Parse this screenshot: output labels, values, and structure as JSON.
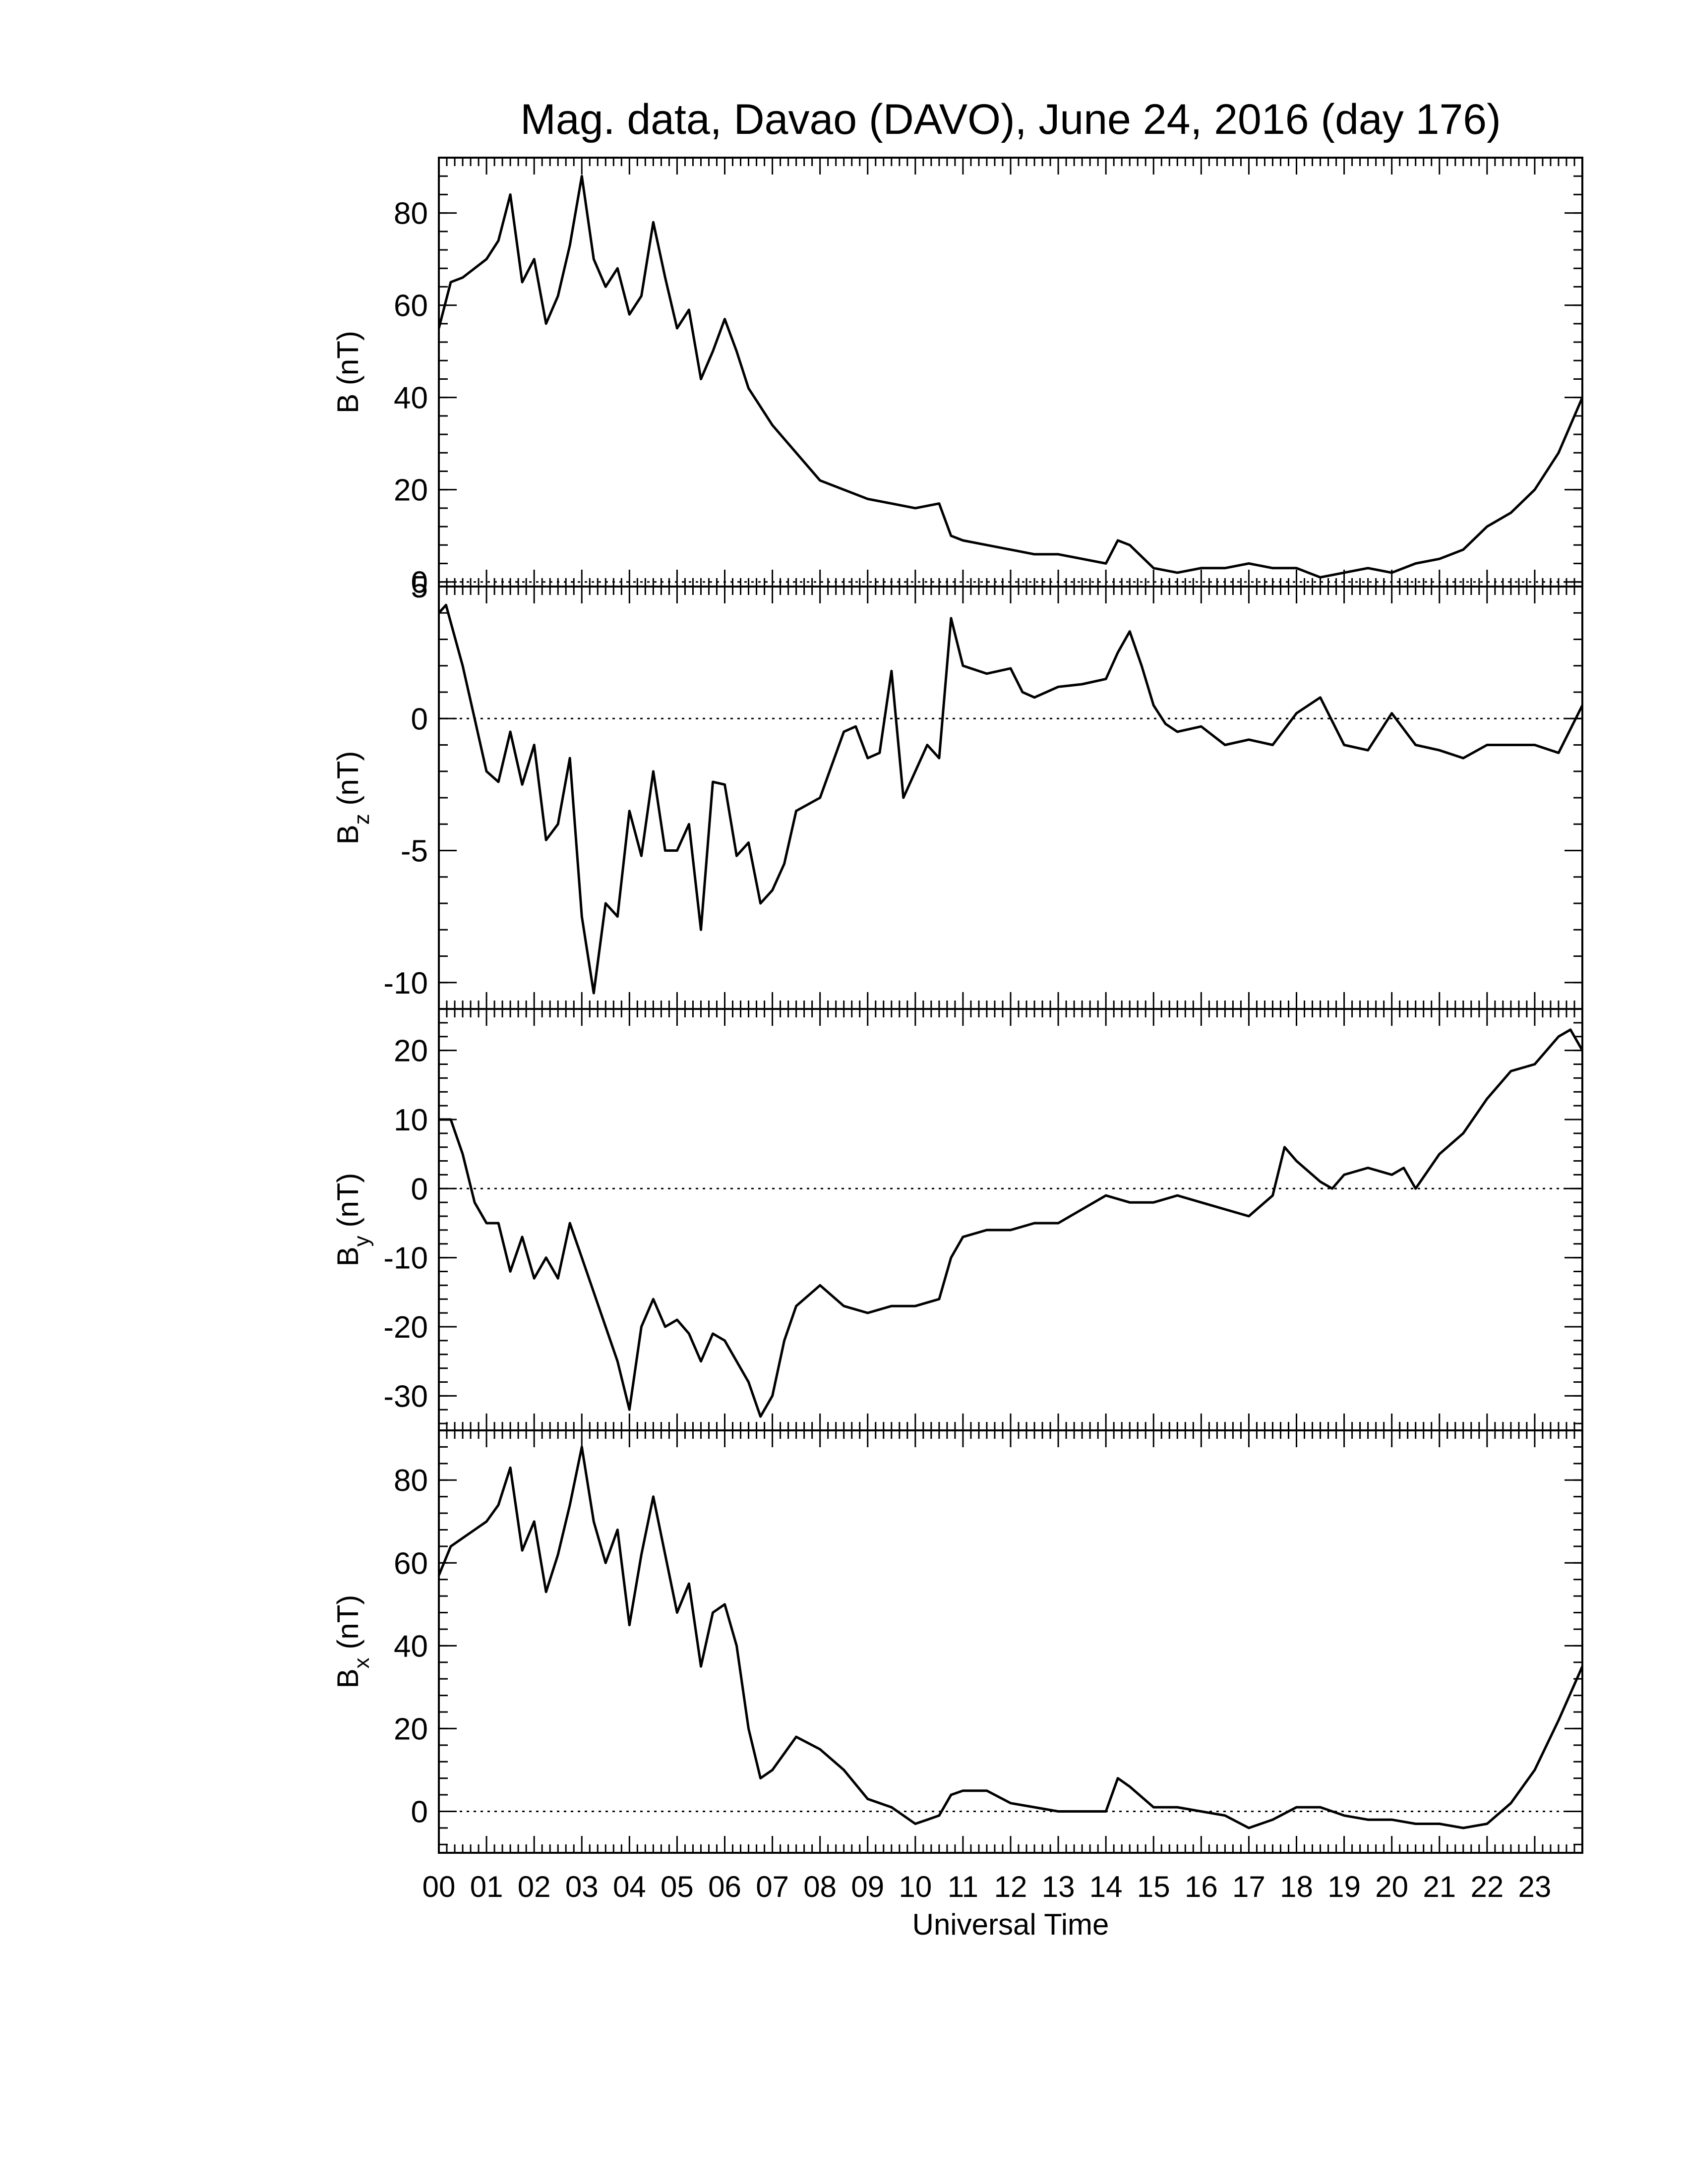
{
  "chart_data": {
    "type": "line",
    "title": "Mag. data, Davao (DAVO), June 24, 2016 (day 176)",
    "xlabel": "Universal Time",
    "x_tick_labels": [
      "00",
      "01",
      "02",
      "03",
      "04",
      "05",
      "06",
      "07",
      "08",
      "09",
      "10",
      "11",
      "12",
      "13",
      "14",
      "15",
      "16",
      "17",
      "18",
      "19",
      "20",
      "21",
      "22",
      "23"
    ],
    "xlim": [
      0,
      24
    ],
    "line_color": "#000000",
    "zero_line_style": "dotted",
    "panels": [
      {
        "id": "B",
        "ylabel_main": "B",
        "ylabel_sub": "",
        "ylabel_unit": "(nT)",
        "ylim": [
          -1,
          92
        ],
        "yticks": [
          0,
          20,
          40,
          60,
          80
        ],
        "ytick_labels": [
          "0",
          "20",
          "40",
          "60",
          "80"
        ],
        "zero_line": true,
        "x": [
          0,
          0.25,
          0.5,
          0.75,
          1.0,
          1.25,
          1.5,
          1.75,
          2.0,
          2.25,
          2.5,
          2.75,
          3.0,
          3.25,
          3.5,
          3.75,
          4.0,
          4.25,
          4.5,
          4.75,
          5.0,
          5.25,
          5.5,
          5.75,
          6.0,
          6.25,
          6.5,
          7.0,
          7.5,
          8.0,
          8.5,
          9.0,
          9.5,
          10.0,
          10.5,
          10.75,
          11.0,
          11.5,
          12.0,
          12.5,
          13.0,
          13.5,
          14.0,
          14.25,
          14.5,
          15.0,
          15.5,
          16.0,
          16.5,
          17.0,
          17.5,
          18.0,
          18.5,
          19.0,
          19.5,
          20.0,
          20.5,
          21.0,
          21.5,
          22.0,
          22.5,
          23.0,
          23.5,
          24.0
        ],
        "y": [
          55,
          65,
          66,
          68,
          70,
          74,
          84,
          65,
          70,
          56,
          62,
          73,
          88,
          70,
          64,
          68,
          58,
          62,
          78,
          66,
          55,
          59,
          44,
          50,
          57,
          50,
          42,
          34,
          28,
          22,
          20,
          18,
          17,
          16,
          17,
          10,
          9,
          8,
          7,
          6,
          6,
          5,
          4,
          9,
          8,
          3,
          2,
          3,
          3,
          4,
          3,
          3,
          1,
          2,
          3,
          2,
          4,
          5,
          7,
          12,
          15,
          20,
          28,
          40
        ]
      },
      {
        "id": "Bz",
        "ylabel_main": "B",
        "ylabel_sub": "z",
        "ylabel_unit": "(nT)",
        "ylim": [
          -11,
          5
        ],
        "yticks": [
          5,
          0,
          -5,
          -10
        ],
        "ytick_labels": [
          "5",
          "0",
          "-5",
          "-10"
        ],
        "zero_line": true,
        "x": [
          0,
          0.15,
          0.5,
          0.75,
          1.0,
          1.25,
          1.5,
          1.75,
          2.0,
          2.25,
          2.5,
          2.75,
          3.0,
          3.25,
          3.5,
          3.75,
          4.0,
          4.25,
          4.5,
          4.75,
          5.0,
          5.25,
          5.5,
          5.75,
          6.0,
          6.25,
          6.5,
          6.75,
          7.0,
          7.25,
          7.5,
          8.0,
          8.5,
          8.75,
          9.0,
          9.25,
          9.5,
          9.75,
          10.0,
          10.25,
          10.5,
          10.75,
          11.0,
          11.5,
          12.0,
          12.25,
          12.5,
          13.0,
          13.5,
          14.0,
          14.25,
          14.5,
          14.75,
          15.0,
          15.25,
          15.5,
          16.0,
          16.5,
          17.0,
          17.5,
          18.0,
          18.5,
          19.0,
          19.5,
          20.0,
          20.5,
          21.0,
          21.5,
          22.0,
          22.5,
          23.0,
          23.5,
          24.0
        ],
        "y": [
          4,
          4.3,
          2,
          0,
          -2,
          -2.4,
          -0.5,
          -2.5,
          -1,
          -4.6,
          -4,
          -1.5,
          -7.5,
          -10.4,
          -7,
          -7.5,
          -3.5,
          -5.2,
          -2,
          -5,
          -5,
          -4,
          -8,
          -2.4,
          -2.5,
          -5.2,
          -4.7,
          -7,
          -6.5,
          -5.5,
          -3.5,
          -3,
          -0.5,
          -0.3,
          -1.5,
          -1.3,
          1.8,
          -3,
          -2,
          -1,
          -1.5,
          3.8,
          2,
          1.7,
          1.9,
          1,
          0.8,
          1.2,
          1.3,
          1.5,
          2.5,
          3.3,
          2,
          0.5,
          -0.2,
          -0.5,
          -0.3,
          -1,
          -0.8,
          -1,
          0.2,
          0.8,
          -1,
          -1.2,
          0.2,
          -1,
          -1.2,
          -1.5,
          -1,
          -1,
          -1,
          -1.3,
          0.5
        ]
      },
      {
        "id": "By",
        "ylabel_main": "B",
        "ylabel_sub": "y",
        "ylabel_unit": "(nT)",
        "ylim": [
          -35,
          26
        ],
        "yticks": [
          20,
          10,
          0,
          -10,
          -20,
          -30
        ],
        "ytick_labels": [
          "20",
          "10",
          "0",
          "-10",
          "-20",
          "-30"
        ],
        "zero_line": true,
        "x": [
          0,
          0.25,
          0.5,
          0.75,
          1.0,
          1.25,
          1.5,
          1.75,
          2.0,
          2.25,
          2.5,
          2.75,
          3.0,
          3.25,
          3.5,
          3.75,
          4.0,
          4.25,
          4.5,
          4.75,
          5.0,
          5.25,
          5.5,
          5.75,
          6.0,
          6.5,
          6.75,
          7.0,
          7.25,
          7.5,
          8.0,
          8.5,
          9.0,
          9.5,
          10.0,
          10.5,
          10.75,
          11.0,
          11.5,
          12.0,
          12.5,
          13.0,
          13.5,
          14.0,
          14.5,
          15.0,
          15.5,
          16.0,
          16.5,
          17.0,
          17.5,
          17.75,
          18.0,
          18.5,
          18.75,
          19.0,
          19.5,
          20.0,
          20.25,
          20.5,
          21.0,
          21.5,
          22.0,
          22.5,
          23.0,
          23.5,
          23.75,
          24.0
        ],
        "y": [
          10,
          10,
          5,
          -2,
          -5,
          -5,
          -12,
          -7,
          -13,
          -10,
          -13,
          -5,
          -10,
          -15,
          -20,
          -25,
          -32,
          -20,
          -16,
          -20,
          -19,
          -21,
          -25,
          -21,
          -22,
          -28,
          -33,
          -30,
          -22,
          -17,
          -14,
          -17,
          -18,
          -17,
          -17,
          -16,
          -10,
          -7,
          -6,
          -6,
          -5,
          -5,
          -3,
          -1,
          -2,
          -2,
          -1,
          -2,
          -3,
          -4,
          -1,
          6,
          4,
          1,
          0,
          2,
          3,
          2,
          3,
          0,
          5,
          8,
          13,
          17,
          18,
          22,
          23,
          20
        ]
      },
      {
        "id": "Bx",
        "ylabel_main": "B",
        "ylabel_sub": "x",
        "ylabel_unit": "(nT)",
        "ylim": [
          -10,
          92
        ],
        "yticks": [
          0,
          20,
          40,
          60,
          80
        ],
        "ytick_labels": [
          "0",
          "20",
          "40",
          "60",
          "80"
        ],
        "zero_line": true,
        "x": [
          0,
          0.25,
          0.5,
          0.75,
          1.0,
          1.25,
          1.5,
          1.75,
          2.0,
          2.25,
          2.5,
          2.75,
          3.0,
          3.25,
          3.5,
          3.75,
          4.0,
          4.25,
          4.5,
          4.75,
          5.0,
          5.25,
          5.5,
          5.75,
          6.0,
          6.25,
          6.5,
          6.75,
          7.0,
          7.25,
          7.5,
          8.0,
          8.5,
          9.0,
          9.5,
          10.0,
          10.25,
          10.5,
          10.75,
          11.0,
          11.5,
          12.0,
          12.5,
          13.0,
          13.5,
          14.0,
          14.25,
          14.5,
          15.0,
          15.5,
          16.0,
          16.5,
          17.0,
          17.5,
          18.0,
          18.5,
          19.0,
          19.5,
          20.0,
          20.5,
          21.0,
          21.5,
          22.0,
          22.5,
          23.0,
          23.5,
          24.0
        ],
        "y": [
          57,
          64,
          66,
          68,
          70,
          74,
          83,
          63,
          70,
          53,
          62,
          74,
          88,
          70,
          60,
          68,
          45,
          62,
          76,
          62,
          48,
          55,
          35,
          48,
          50,
          40,
          20,
          8,
          10,
          14,
          18,
          15,
          10,
          3,
          1,
          -3,
          -2,
          -1,
          4,
          5,
          5,
          2,
          1,
          0,
          0,
          0,
          8,
          6,
          1,
          1,
          0,
          -1,
          -4,
          -2,
          1,
          1,
          -1,
          -2,
          -2,
          -3,
          -3,
          -4,
          -3,
          2,
          10,
          22,
          35
        ]
      }
    ]
  }
}
